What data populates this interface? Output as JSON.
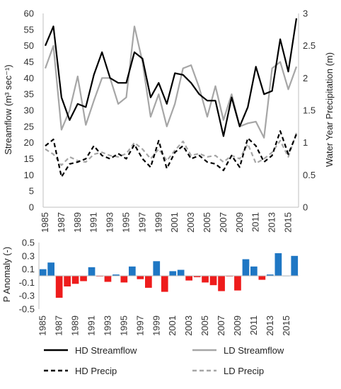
{
  "chart_data": [
    {
      "type": "line",
      "x": [
        1985,
        1986,
        1987,
        1988,
        1989,
        1990,
        1991,
        1992,
        1993,
        1994,
        1995,
        1996,
        1997,
        1998,
        1999,
        2000,
        2001,
        2002,
        2003,
        2004,
        2005,
        2006,
        2007,
        2008,
        2009,
        2010,
        2011,
        2012,
        2013,
        2014,
        2015,
        2016
      ],
      "xticks": [
        "1985",
        "1987",
        "1989",
        "1991",
        "1993",
        "1995",
        "1997",
        "1999",
        "2001",
        "2003",
        "2005",
        "2007",
        "2009",
        "2011",
        "2013",
        "2015"
      ],
      "ylabel": "Streamflow (m³ sec⁻¹)",
      "y2label": "Water Year Precipitation (m)",
      "ylim": [
        0,
        60
      ],
      "y2lim": [
        0,
        3
      ],
      "yticks": [
        "0",
        "5",
        "10",
        "15",
        "20",
        "25",
        "30",
        "35",
        "40",
        "45",
        "50",
        "55",
        "60"
      ],
      "y2ticks": [
        "0",
        "0.5",
        "1",
        "1.5",
        "2",
        "2.5",
        "3"
      ],
      "grid": false,
      "legend_position": "bottom",
      "series": [
        {
          "name": "HD Streamflow",
          "axis": "left",
          "style": "solid",
          "color": "#000000",
          "values": [
            50,
            56,
            34,
            27,
            32,
            31,
            41,
            48,
            40,
            38.5,
            38.5,
            48,
            46,
            34,
            38.5,
            32,
            41.5,
            41,
            38.5,
            35,
            33,
            33,
            22,
            34,
            25,
            31,
            43.5,
            35,
            36,
            52,
            42,
            58.5
          ]
        },
        {
          "name": "LD Streamflow",
          "axis": "left",
          "style": "solid",
          "color": "#a6a6a6",
          "values": [
            43,
            50,
            24,
            30,
            40.5,
            25.5,
            33,
            40,
            40,
            32,
            34,
            56,
            45,
            28,
            35,
            25,
            32,
            43,
            44,
            37,
            28,
            37.5,
            27,
            35,
            25,
            26,
            26.5,
            21.5,
            43,
            45,
            36.5,
            43.5
          ]
        },
        {
          "name": "HD Precip",
          "axis": "right",
          "style": "dashed",
          "color": "#000000",
          "values": [
            0.95,
            1.05,
            0.47,
            0.67,
            0.7,
            0.75,
            0.95,
            0.8,
            0.75,
            0.83,
            0.75,
            0.97,
            0.75,
            0.62,
            1.03,
            0.6,
            0.85,
            0.95,
            0.75,
            0.8,
            0.7,
            0.67,
            0.57,
            0.8,
            0.62,
            1.07,
            0.95,
            0.7,
            0.8,
            1.18,
            0.82,
            1.13
          ]
        },
        {
          "name": "LD Precip",
          "axis": "right",
          "style": "dashed",
          "color": "#a6a6a6",
          "values": [
            0.9,
            0.82,
            0.65,
            0.78,
            0.72,
            0.7,
            0.82,
            0.85,
            0.8,
            0.78,
            0.83,
            1.0,
            0.9,
            0.75,
            0.9,
            0.72,
            0.88,
            1.02,
            0.8,
            0.83,
            0.78,
            0.8,
            0.7,
            0.8,
            0.75,
            0.98,
            0.68,
            0.75,
            0.85,
            1.03,
            0.78,
            1.15
          ]
        }
      ]
    },
    {
      "type": "bar",
      "ylabel": "P Anomaly (-)",
      "ylim": [
        -0.5,
        0.5
      ],
      "yticks": [
        "0.5",
        "0.3",
        "0.1",
        "-0.1",
        "-0.3",
        "-0.5"
      ],
      "xticks": [
        "1985",
        "1987",
        "1989",
        "1991",
        "1993",
        "1995",
        "1997",
        "1999",
        "2001",
        "2003",
        "2005",
        "2007",
        "2009",
        "2011",
        "2013",
        "2015"
      ],
      "positive_color": "#1f77c4",
      "negative_color": "#ee1c1c",
      "categories": [
        1985,
        1986,
        1987,
        1988,
        1989,
        1990,
        1991,
        1992,
        1993,
        1994,
        1995,
        1996,
        1997,
        1998,
        1999,
        2000,
        2001,
        2002,
        2003,
        2004,
        2005,
        2006,
        2007,
        2008,
        2009,
        2010,
        2011,
        2012,
        2013,
        2014,
        2015,
        2016
      ],
      "values": [
        0.1,
        0.2,
        -0.33,
        -0.16,
        -0.12,
        -0.08,
        0.13,
        -0.01,
        -0.09,
        0.02,
        -0.1,
        0.14,
        -0.05,
        -0.18,
        0.22,
        -0.24,
        0.07,
        0.09,
        -0.07,
        -0.02,
        -0.1,
        -0.14,
        -0.23,
        -0.01,
        -0.22,
        0.25,
        0.14,
        -0.06,
        0.02,
        0.34,
        0.0,
        0.3
      ]
    }
  ]
}
